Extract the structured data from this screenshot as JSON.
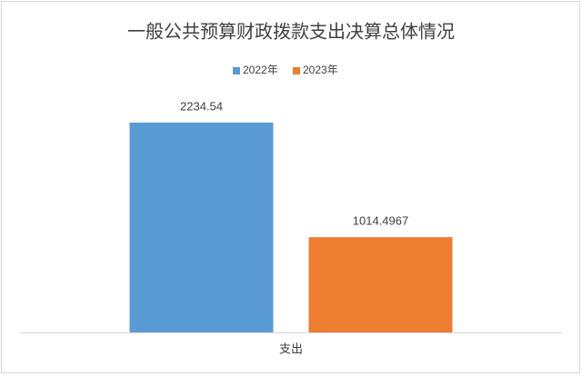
{
  "chart_data": {
    "type": "bar",
    "title": "一般公共预算财政拨款支出决算总体情况",
    "categories": [
      "支出"
    ],
    "series": [
      {
        "name": "2022年",
        "color": "#5b9bd5",
        "values": [
          2234.54
        ]
      },
      {
        "name": "2023年",
        "color": "#ed7d31",
        "values": [
          1014.4967
        ]
      }
    ],
    "legend": "top"
  }
}
